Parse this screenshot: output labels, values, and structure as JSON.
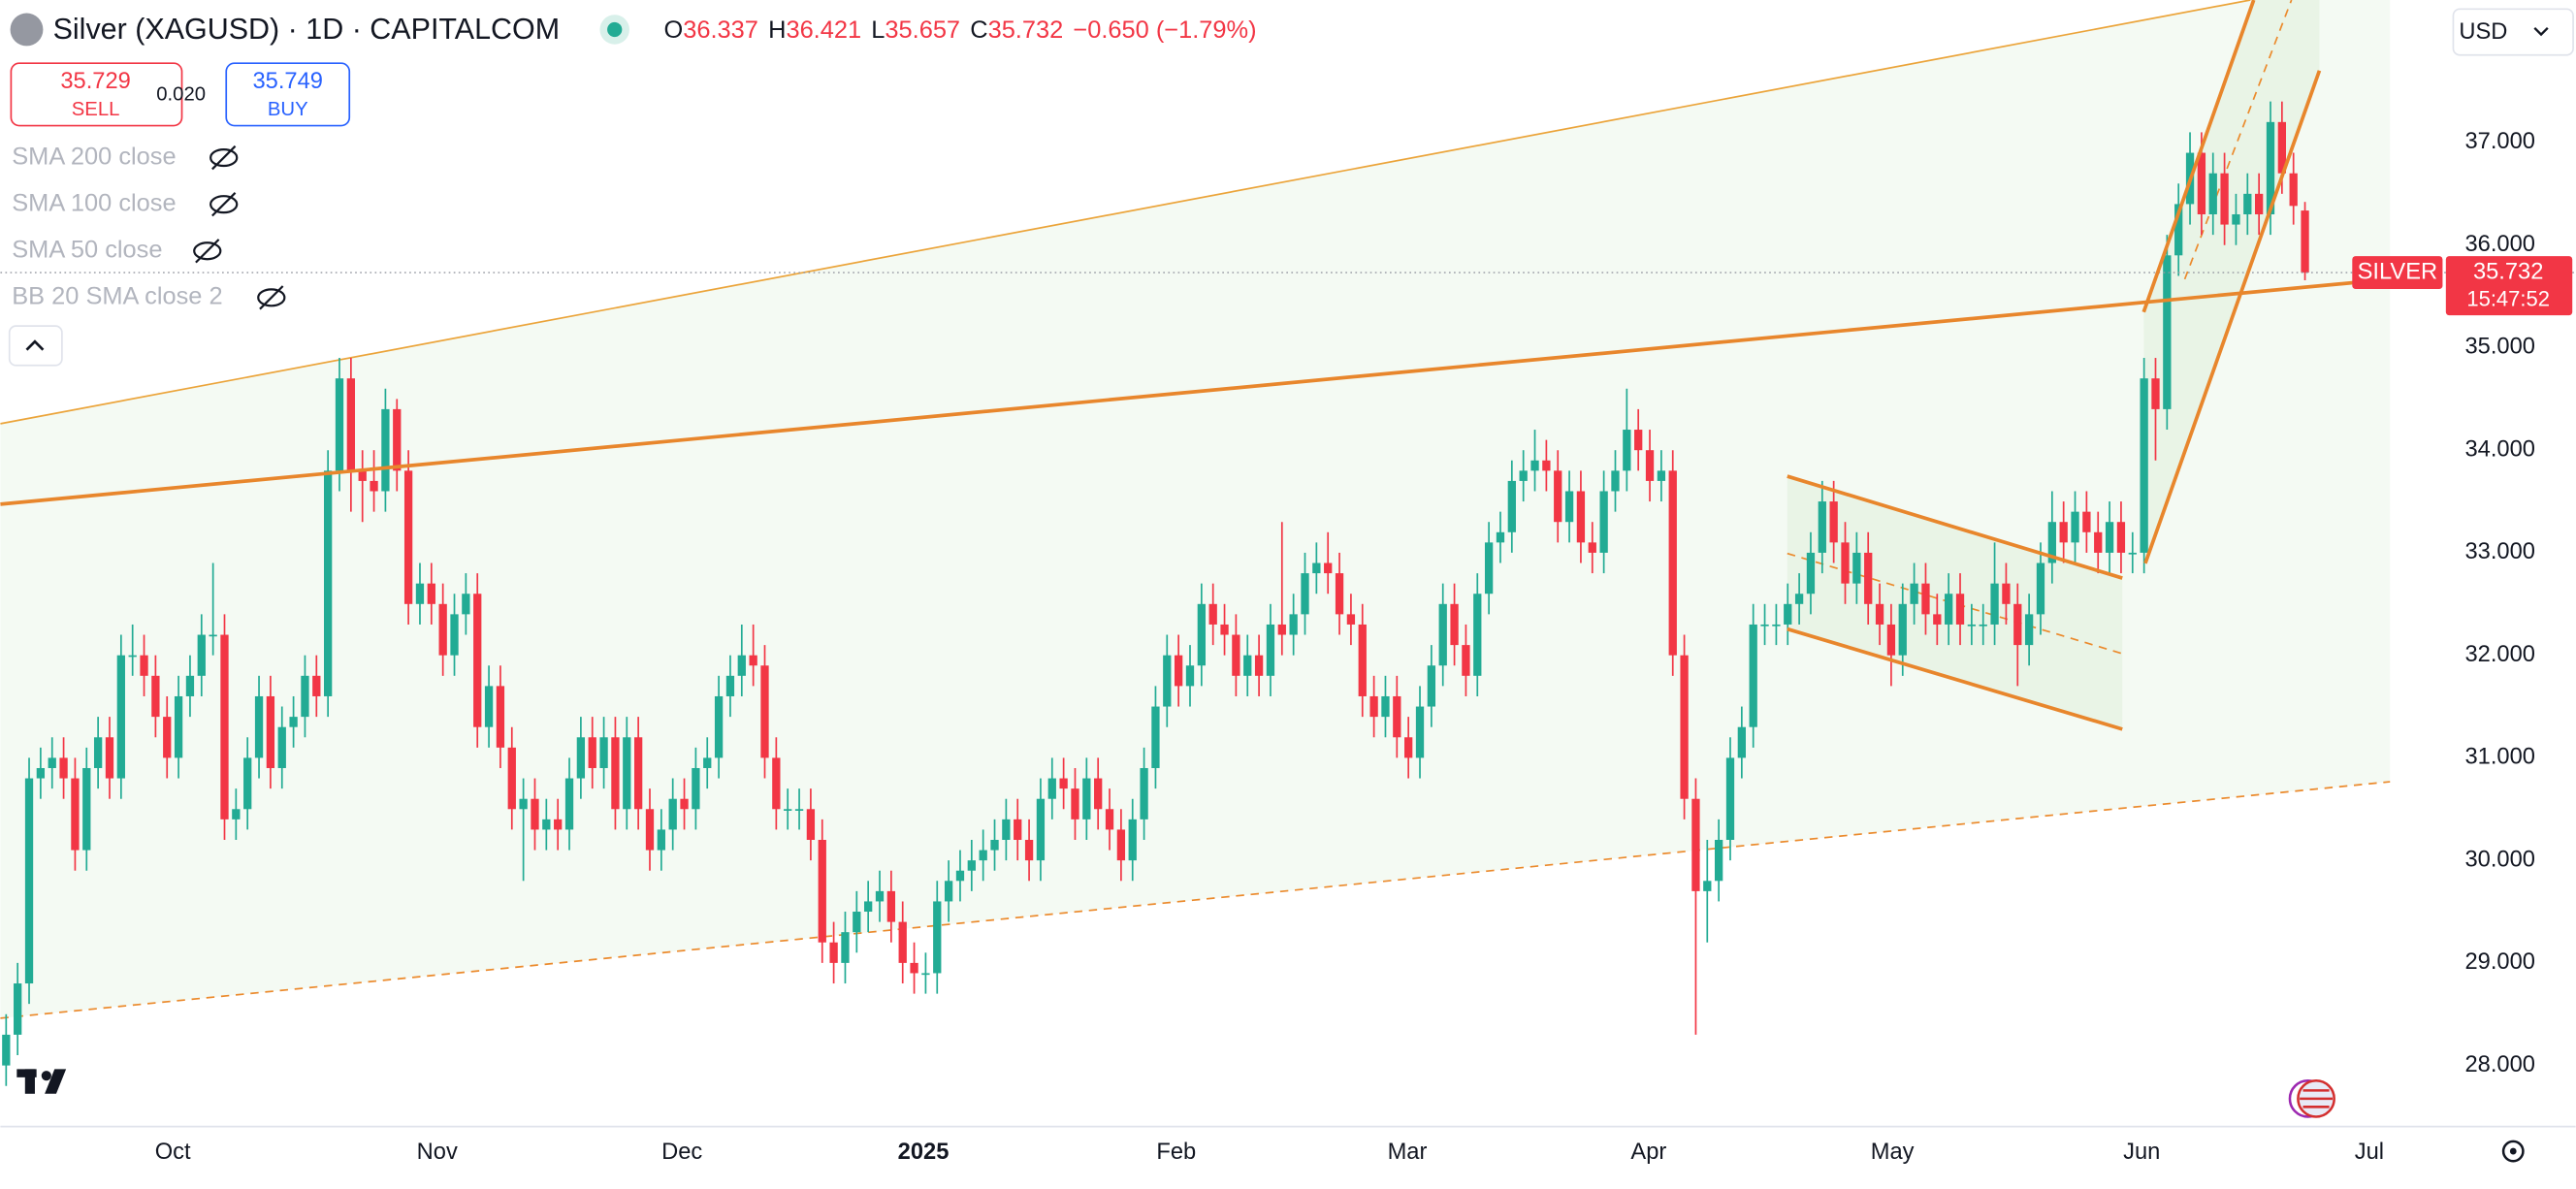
{
  "header": {
    "title": "Silver (XAGUSD) · 1D · CAPITALCOM",
    "o_label": "O",
    "open": "36.337",
    "h_label": "H",
    "high": "36.421",
    "l_label": "L",
    "low": "35.657",
    "c_label": "C",
    "close": "35.732",
    "change": "−0.650 (−1.79%)"
  },
  "trade": {
    "sell_price": "35.729",
    "sell_label": "SELL",
    "spread": "0.020",
    "buy_price": "35.749",
    "buy_label": "BUY"
  },
  "indicators": [
    "SMA 200 close",
    "SMA 100 close",
    "SMA 50 close",
    "BB 20 SMA close 2"
  ],
  "currency": "USD",
  "chart_data": {
    "type": "candlestick",
    "up_color": "#22ab94",
    "down_color": "#f23645",
    "grid": false,
    "xlim": [
      -0.5,
      207.4
    ],
    "ylim": [
      27.42,
      38.39
    ],
    "xticks": [
      {
        "value": 14.5,
        "label": "Oct"
      },
      {
        "value": 37.5,
        "label": "Nov"
      },
      {
        "value": 58.8,
        "label": "Dec"
      },
      {
        "value": 79.8,
        "label": "2025"
      },
      {
        "value": 101.8,
        "label": "Feb"
      },
      {
        "value": 121.9,
        "label": "Mar"
      },
      {
        "value": 142.9,
        "label": "Apr"
      },
      {
        "value": 164.1,
        "label": "May"
      },
      {
        "value": 185.8,
        "label": "Jun"
      },
      {
        "value": 205.6,
        "label": "Jul"
      }
    ],
    "yticks": [
      {
        "value": 28,
        "label": "28.000"
      },
      {
        "value": 29,
        "label": "29.000"
      },
      {
        "value": 30,
        "label": "30.000"
      },
      {
        "value": 31,
        "label": "31.000"
      },
      {
        "value": 32,
        "label": "32.000"
      },
      {
        "value": 33,
        "label": "33.000"
      },
      {
        "value": 34,
        "label": "34.000"
      },
      {
        "value": 35,
        "label": "35.000"
      },
      {
        "value": 36,
        "label": "36.000"
      },
      {
        "value": 37,
        "label": "37.000"
      }
    ],
    "price_tag": {
      "name": "SILVER",
      "price": "35.732",
      "countdown": "15:47:52"
    },
    "open": [
      28.0,
      28.3,
      28.8,
      30.8,
      30.9,
      31.0,
      30.8,
      30.1,
      30.9,
      31.2,
      30.8,
      32.0,
      32.0,
      31.8,
      31.4,
      31.0,
      31.6,
      31.8,
      32.2,
      32.2,
      30.4,
      30.5,
      31.0,
      31.6,
      30.9,
      31.3,
      31.4,
      31.8,
      31.6,
      33.8,
      34.7,
      33.8,
      33.7,
      33.6,
      34.4,
      33.8,
      32.5,
      32.7,
      32.5,
      32.0,
      32.4,
      32.6,
      31.3,
      31.7,
      31.1,
      30.5,
      30.6,
      30.3,
      30.4,
      30.3,
      30.8,
      31.2,
      30.9,
      31.2,
      30.5,
      31.2,
      30.5,
      30.1,
      30.3,
      30.6,
      30.5,
      30.9,
      31.0,
      31.6,
      31.8,
      32.0,
      31.9,
      31.0,
      30.5,
      30.5,
      30.5,
      30.2,
      29.2,
      29.0,
      29.3,
      29.5,
      29.6,
      29.7,
      29.4,
      29.0,
      28.9,
      28.9,
      29.6,
      29.8,
      29.9,
      30.0,
      30.1,
      30.2,
      30.4,
      30.2,
      30.0,
      30.6,
      30.8,
      30.7,
      30.4,
      30.8,
      30.5,
      30.3,
      30.0,
      30.4,
      30.9,
      31.5,
      32.0,
      31.7,
      31.9,
      32.5,
      32.3,
      32.2,
      31.8,
      32.0,
      31.8,
      32.3,
      32.2,
      32.4,
      32.8,
      32.9,
      32.8,
      32.4,
      32.3,
      31.6,
      31.4,
      31.6,
      31.2,
      31.0,
      31.5,
      31.9,
      32.5,
      32.1,
      31.8,
      32.6,
      33.1,
      33.2,
      33.7,
      33.8,
      33.9,
      33.8,
      33.3,
      33.6,
      33.1,
      33.0,
      33.6,
      33.8,
      34.2,
      34.0,
      33.7,
      33.8,
      32.0,
      30.6,
      29.7,
      29.8,
      30.2,
      31.0,
      31.3,
      32.3,
      32.3,
      32.3,
      32.5,
      32.6,
      33.0,
      33.5,
      33.1,
      32.7,
      33.0,
      32.5,
      32.3,
      32.0,
      32.5,
      32.7,
      32.4,
      32.3,
      32.6,
      32.3,
      32.3,
      32.3,
      32.7,
      32.5,
      32.1,
      32.4,
      32.9,
      33.3,
      33.1,
      33.4,
      33.2,
      33.0,
      33.3,
      33.0,
      33.0,
      34.7,
      34.4,
      35.9,
      36.4,
      36.9,
      36.3,
      36.7,
      36.2,
      36.3,
      36.5,
      36.3,
      37.2,
      36.7,
      36.337
    ],
    "high": [
      28.5,
      29.0,
      31.0,
      31.1,
      31.2,
      31.2,
      31.0,
      31.1,
      31.4,
      31.4,
      32.2,
      32.3,
      32.2,
      32.0,
      31.6,
      31.8,
      32.0,
      32.4,
      32.9,
      32.4,
      30.7,
      31.2,
      31.8,
      31.8,
      31.5,
      31.6,
      32.0,
      32.0,
      34.0,
      34.9,
      34.9,
      34.0,
      34.0,
      34.6,
      34.5,
      34.0,
      32.9,
      32.9,
      32.7,
      32.6,
      32.8,
      32.8,
      31.9,
      31.9,
      31.3,
      30.8,
      30.8,
      30.6,
      30.6,
      31.0,
      31.4,
      31.4,
      31.4,
      31.4,
      31.4,
      31.4,
      30.7,
      30.5,
      30.8,
      30.8,
      31.1,
      31.2,
      31.8,
      32.0,
      32.3,
      32.3,
      32.1,
      31.2,
      30.7,
      30.7,
      30.7,
      30.4,
      29.4,
      29.5,
      29.7,
      29.8,
      29.9,
      29.9,
      29.6,
      29.2,
      29.1,
      29.8,
      30.0,
      30.1,
      30.2,
      30.3,
      30.4,
      30.6,
      30.6,
      30.4,
      30.8,
      31.0,
      31.0,
      30.9,
      31.0,
      31.0,
      30.7,
      30.5,
      30.6,
      31.1,
      31.7,
      32.2,
      32.2,
      32.1,
      32.7,
      32.7,
      32.5,
      32.4,
      32.2,
      32.2,
      32.5,
      33.3,
      32.6,
      33.0,
      33.1,
      33.2,
      33.0,
      32.6,
      32.5,
      31.8,
      31.8,
      31.8,
      31.4,
      31.7,
      32.1,
      32.7,
      32.7,
      32.3,
      32.8,
      33.3,
      33.4,
      33.9,
      34.0,
      34.2,
      34.1,
      34.0,
      33.8,
      33.8,
      33.3,
      33.8,
      34.0,
      34.6,
      34.4,
      34.2,
      34.0,
      34.0,
      32.2,
      30.8,
      30.2,
      30.4,
      31.2,
      31.5,
      32.5,
      32.5,
      32.5,
      32.7,
      32.8,
      33.2,
      33.7,
      33.7,
      33.3,
      33.2,
      33.2,
      32.7,
      32.5,
      32.7,
      32.9,
      32.9,
      32.6,
      32.8,
      32.8,
      32.5,
      32.5,
      33.1,
      32.9,
      32.7,
      32.6,
      33.1,
      33.6,
      33.5,
      33.6,
      33.6,
      33.4,
      33.5,
      33.5,
      33.2,
      34.9,
      34.9,
      36.1,
      36.6,
      37.1,
      37.1,
      36.9,
      36.9,
      36.5,
      36.7,
      36.7,
      37.4,
      37.4,
      36.9,
      36.421
    ],
    "low": [
      27.8,
      28.1,
      28.6,
      30.6,
      30.7,
      30.6,
      29.9,
      29.9,
      30.7,
      30.6,
      30.6,
      31.8,
      31.6,
      31.2,
      30.8,
      30.8,
      31.4,
      31.6,
      32.0,
      30.2,
      30.2,
      30.3,
      30.8,
      30.7,
      30.7,
      31.1,
      31.2,
      31.4,
      31.4,
      33.6,
      33.4,
      33.3,
      33.4,
      33.4,
      33.6,
      32.3,
      32.3,
      32.3,
      31.8,
      31.8,
      32.2,
      31.1,
      31.1,
      30.9,
      30.3,
      29.8,
      30.1,
      30.1,
      30.1,
      30.1,
      30.6,
      30.7,
      30.7,
      30.3,
      30.3,
      30.3,
      29.9,
      29.9,
      30.1,
      30.3,
      30.3,
      30.7,
      30.8,
      31.4,
      31.6,
      31.7,
      30.8,
      30.3,
      30.3,
      30.3,
      30.0,
      29.0,
      28.8,
      28.8,
      29.1,
      29.3,
      29.4,
      29.2,
      28.8,
      28.7,
      28.7,
      28.7,
      29.4,
      29.6,
      29.7,
      29.8,
      29.9,
      30.0,
      30.0,
      29.8,
      29.8,
      30.4,
      30.5,
      30.2,
      30.2,
      30.3,
      30.1,
      29.8,
      29.8,
      30.2,
      30.7,
      31.3,
      31.5,
      31.5,
      31.7,
      32.1,
      32.0,
      31.6,
      31.6,
      31.6,
      31.6,
      32.0,
      32.0,
      32.2,
      32.6,
      32.6,
      32.2,
      32.1,
      31.4,
      31.2,
      31.2,
      31.0,
      30.8,
      30.8,
      31.3,
      31.7,
      31.9,
      31.6,
      31.6,
      32.4,
      32.9,
      33.0,
      33.5,
      33.6,
      33.6,
      33.1,
      33.1,
      32.9,
      32.8,
      32.8,
      33.4,
      33.6,
      33.8,
      33.5,
      33.5,
      31.8,
      30.4,
      28.3,
      29.2,
      29.6,
      30.0,
      30.8,
      31.1,
      32.1,
      32.1,
      32.1,
      32.3,
      32.4,
      32.8,
      32.9,
      32.5,
      32.5,
      32.3,
      32.1,
      31.7,
      31.8,
      32.3,
      32.2,
      32.1,
      32.1,
      32.1,
      32.1,
      32.1,
      32.1,
      32.3,
      31.7,
      31.9,
      32.2,
      32.7,
      32.9,
      32.9,
      33.0,
      32.8,
      32.8,
      32.8,
      32.8,
      32.8,
      33.9,
      34.2,
      35.7,
      36.2,
      36.1,
      36.1,
      36.0,
      36.0,
      36.1,
      36.1,
      36.1,
      36.5,
      36.2,
      35.657
    ],
    "close": [
      28.3,
      28.8,
      30.8,
      30.9,
      31.0,
      30.8,
      30.1,
      30.9,
      31.2,
      30.8,
      32.0,
      32.0,
      31.8,
      31.4,
      31.0,
      31.6,
      31.8,
      32.2,
      32.2,
      30.4,
      30.5,
      31.0,
      31.6,
      30.9,
      31.3,
      31.4,
      31.8,
      31.6,
      33.8,
      34.7,
      33.8,
      33.7,
      33.6,
      34.4,
      33.8,
      32.5,
      32.7,
      32.5,
      32.0,
      32.4,
      32.6,
      31.3,
      31.7,
      31.1,
      30.5,
      30.6,
      30.3,
      30.4,
      30.3,
      30.8,
      31.2,
      30.9,
      31.2,
      30.5,
      31.2,
      30.5,
      30.1,
      30.3,
      30.6,
      30.5,
      30.9,
      31.0,
      31.6,
      31.8,
      32.0,
      31.9,
      31.0,
      30.5,
      30.5,
      30.5,
      30.2,
      29.2,
      29.0,
      29.3,
      29.5,
      29.6,
      29.7,
      29.4,
      29.0,
      28.9,
      28.9,
      29.6,
      29.8,
      29.9,
      30.0,
      30.1,
      30.2,
      30.4,
      30.2,
      30.0,
      30.6,
      30.8,
      30.7,
      30.4,
      30.8,
      30.5,
      30.3,
      30.0,
      30.4,
      30.9,
      31.5,
      32.0,
      31.7,
      31.9,
      32.5,
      32.3,
      32.2,
      31.8,
      32.0,
      31.8,
      32.3,
      32.2,
      32.4,
      32.8,
      32.9,
      32.8,
      32.4,
      32.3,
      31.6,
      31.4,
      31.6,
      31.2,
      31.0,
      31.5,
      31.9,
      32.5,
      32.1,
      31.8,
      32.6,
      33.1,
      33.2,
      33.7,
      33.8,
      33.9,
      33.8,
      33.3,
      33.6,
      33.1,
      33.0,
      33.6,
      33.8,
      34.2,
      34.0,
      33.7,
      33.8,
      32.0,
      30.6,
      29.7,
      29.8,
      30.2,
      31.0,
      31.3,
      32.3,
      32.3,
      32.3,
      32.5,
      32.6,
      33.0,
      33.5,
      33.1,
      32.7,
      33.0,
      32.5,
      32.3,
      32.0,
      32.5,
      32.7,
      32.4,
      32.3,
      32.6,
      32.3,
      32.3,
      32.3,
      32.7,
      32.5,
      32.1,
      32.4,
      32.9,
      33.3,
      33.1,
      33.4,
      33.2,
      33.0,
      33.3,
      33.0,
      33.0,
      34.7,
      34.4,
      35.9,
      36.4,
      36.9,
      36.3,
      36.7,
      36.2,
      36.3,
      36.5,
      36.3,
      37.2,
      36.7,
      36.382,
      35.732
    ]
  }
}
